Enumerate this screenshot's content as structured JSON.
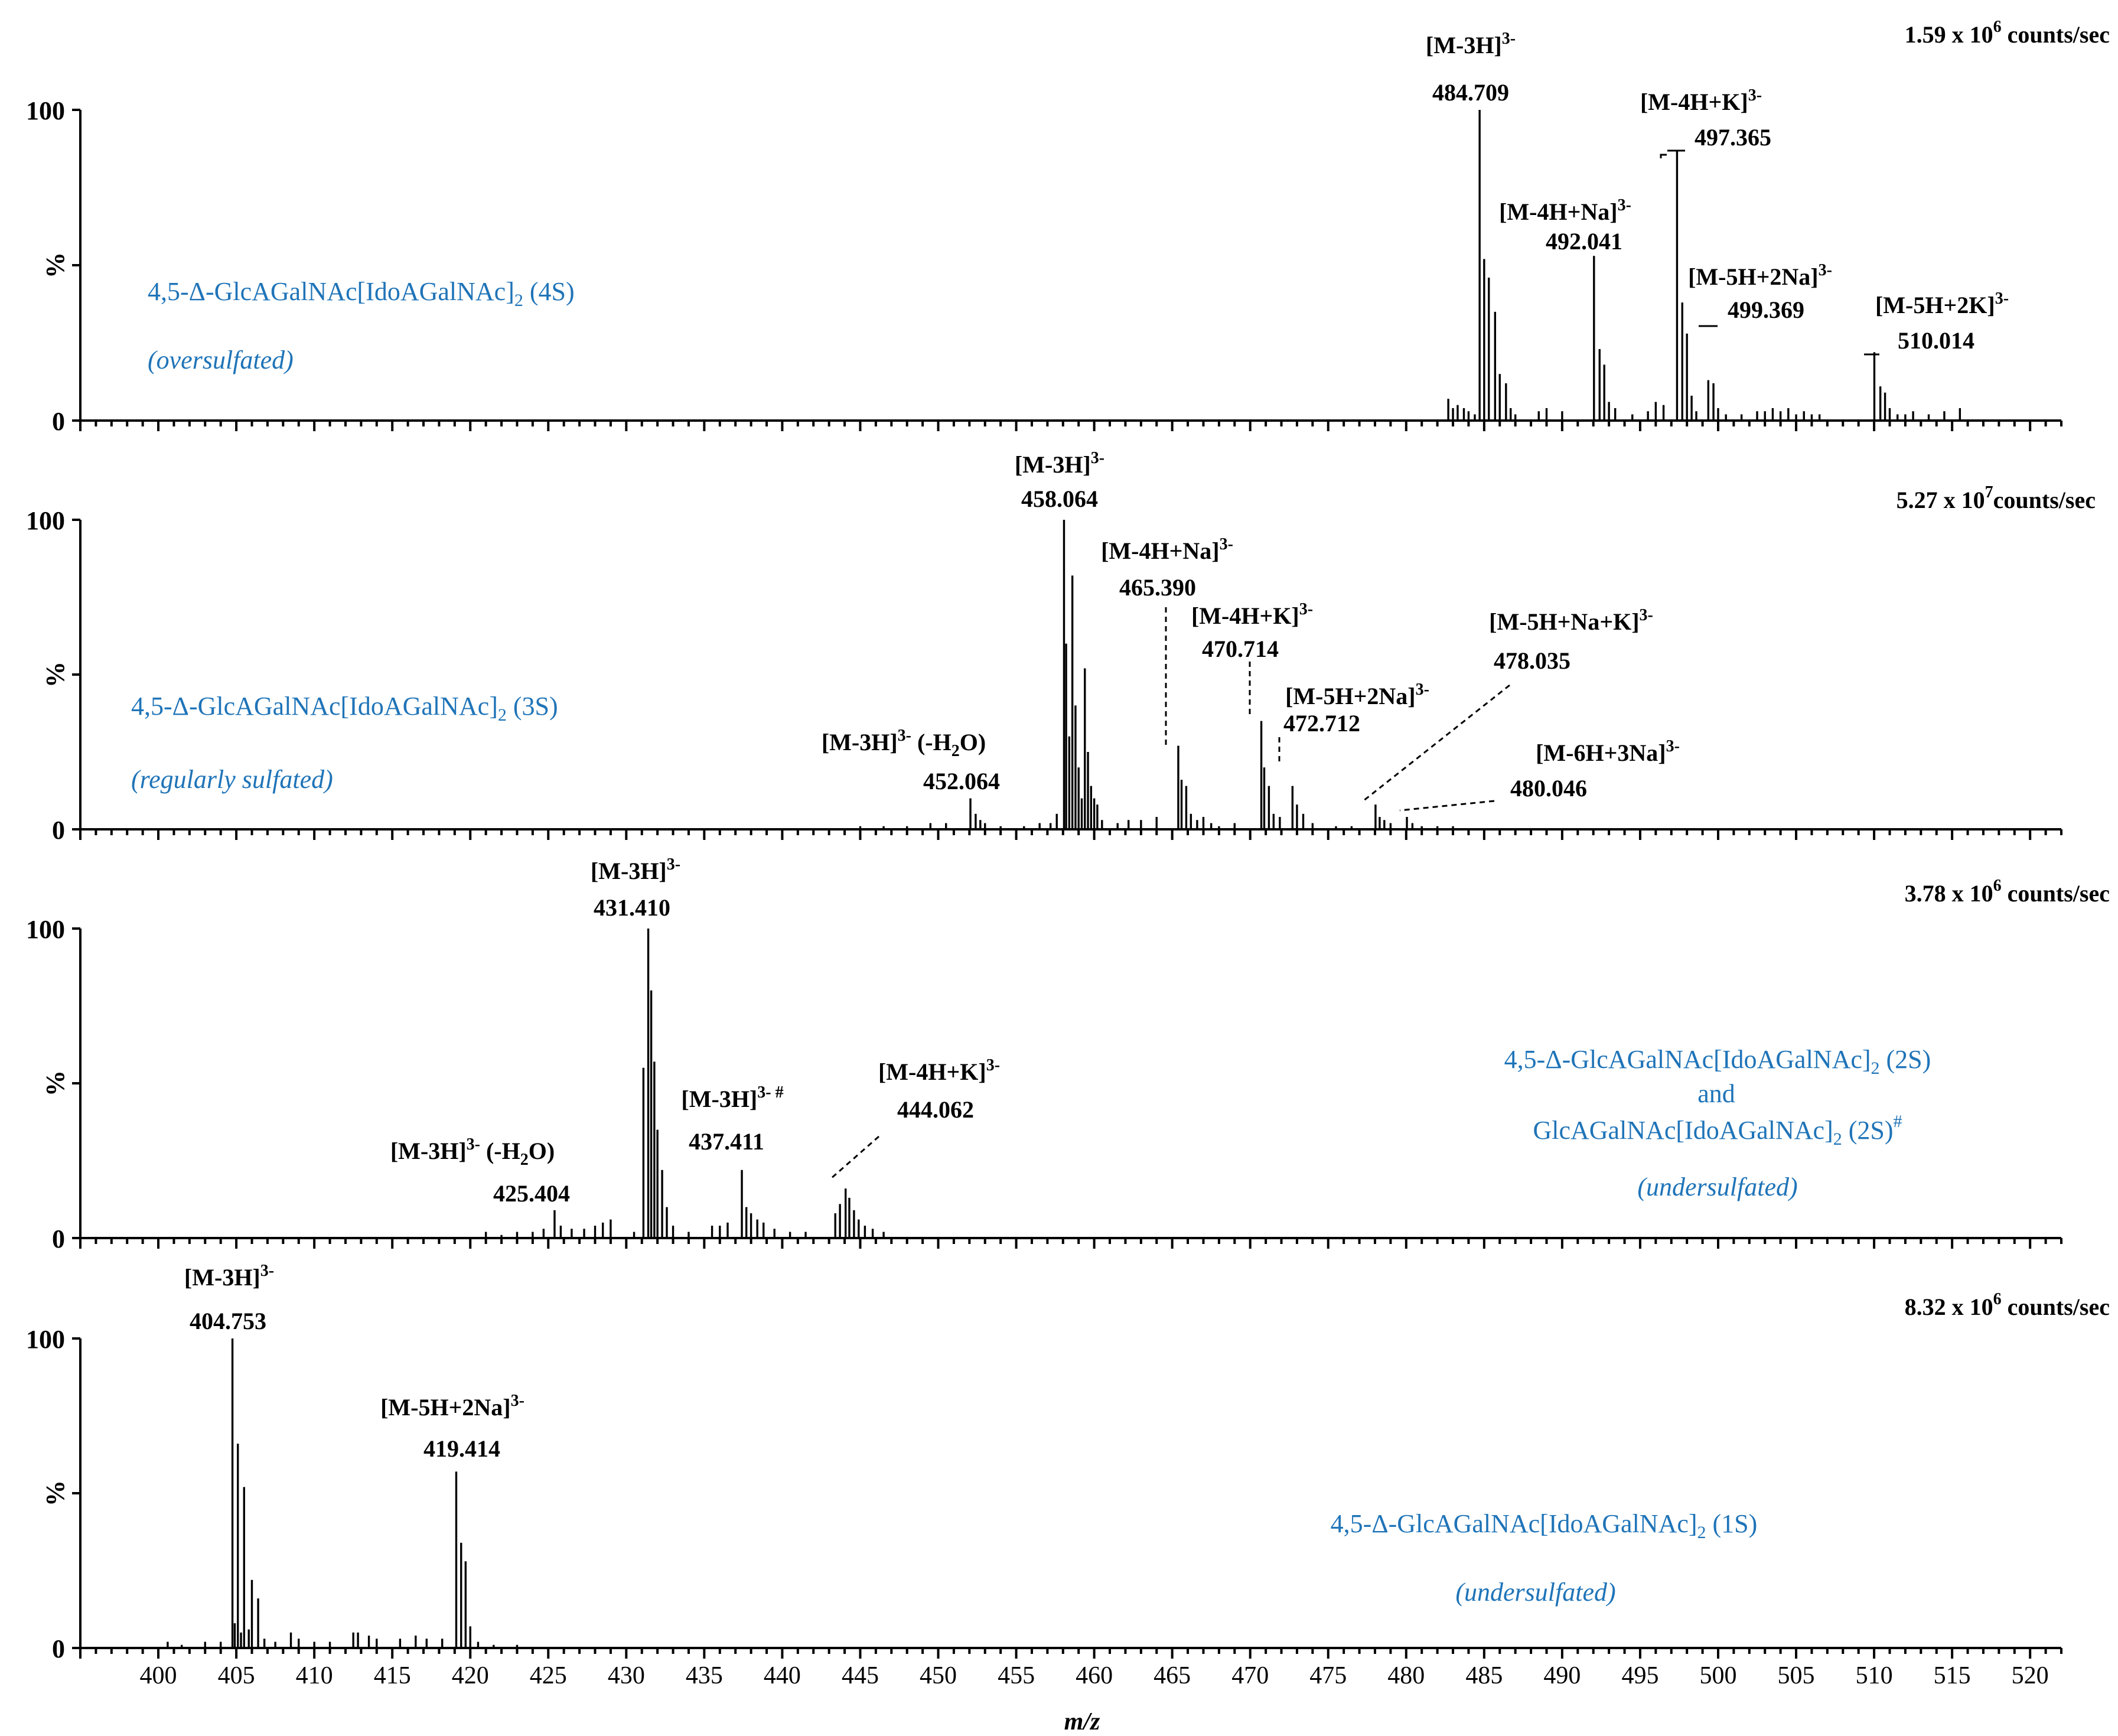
{
  "chart_data": {
    "type": "line",
    "xlabel": "m/z",
    "ylabel": "%",
    "xlim": [
      395,
      522
    ],
    "ylim": [
      0,
      100
    ],
    "x_ticks": [
      "400",
      "405",
      "410",
      "415",
      "420",
      "425",
      "430",
      "435",
      "440",
      "445",
      "450",
      "455",
      "460",
      "465",
      "470",
      "475",
      "480",
      "485",
      "490",
      "495",
      "500",
      "505",
      "510",
      "515",
      "520"
    ],
    "y_ticks": [
      "100",
      "%",
      "0"
    ],
    "panels": [
      {
        "scale_prefix": "1.59 x 10",
        "scale_exp": "6",
        "scale_suffix": "counts/sec",
        "compound": [
          "4,5-Δ-GlcAGalNAc[IdoAGalNAc]",
          "2",
          "(4S)"
        ],
        "descriptor": "(oversulfated)",
        "peaks": [
          [
            482.7,
            7
          ],
          [
            483.0,
            4
          ],
          [
            483.3,
            5
          ],
          [
            483.7,
            4
          ],
          [
            484.0,
            3
          ],
          [
            484.4,
            2
          ],
          [
            484.709,
            100
          ],
          [
            485.0,
            52
          ],
          [
            485.3,
            46
          ],
          [
            485.7,
            35
          ],
          [
            486.0,
            15
          ],
          [
            486.4,
            12
          ],
          [
            486.7,
            4
          ],
          [
            487.0,
            2
          ],
          [
            488.5,
            3
          ],
          [
            489.0,
            4
          ],
          [
            490.0,
            3
          ],
          [
            492.041,
            53
          ],
          [
            492.4,
            23
          ],
          [
            492.7,
            18
          ],
          [
            493.0,
            6
          ],
          [
            493.4,
            4
          ],
          [
            494.5,
            2
          ],
          [
            495.5,
            3
          ],
          [
            496.0,
            6
          ],
          [
            496.5,
            5
          ],
          [
            497.365,
            87
          ],
          [
            497.7,
            38
          ],
          [
            498.0,
            28
          ],
          [
            498.3,
            8
          ],
          [
            498.6,
            3
          ],
          [
            499.369,
            13
          ],
          [
            499.7,
            12
          ],
          [
            500.0,
            4
          ],
          [
            500.5,
            2
          ],
          [
            501.5,
            2
          ],
          [
            502.5,
            3
          ],
          [
            503.0,
            3
          ],
          [
            503.5,
            4
          ],
          [
            504.0,
            3
          ],
          [
            504.5,
            4
          ],
          [
            505.0,
            2
          ],
          [
            505.5,
            3
          ],
          [
            506.0,
            2
          ],
          [
            506.5,
            2
          ],
          [
            510.014,
            22
          ],
          [
            510.4,
            11
          ],
          [
            510.7,
            9
          ],
          [
            511.0,
            4
          ],
          [
            511.5,
            2
          ],
          [
            512.0,
            2
          ],
          [
            512.5,
            3
          ],
          [
            513.5,
            2
          ],
          [
            514.5,
            3
          ],
          [
            515.5,
            4
          ]
        ],
        "labels": [
          {
            "ion": "[M-3H]",
            "charge": "3-",
            "mz": "484.709"
          },
          {
            "ion": "[M-4H+Na]",
            "charge": "3-",
            "mz": "492.041"
          },
          {
            "ion": "[M-4H+K]",
            "charge": "3-",
            "mz": "497.365"
          },
          {
            "ion": "[M-5H+2Na]",
            "charge": "3-",
            "mz": "499.369"
          },
          {
            "ion": "[M-5H+2K]",
            "charge": "3-",
            "mz": "510.014"
          }
        ]
      },
      {
        "scale_prefix": "5.27 x 10",
        "scale_exp": "7",
        "scale_suffix": "counts/sec",
        "compound": [
          "4,5-Δ-GlcAGalNAc[IdoAGalNAc]",
          "2",
          "(3S)"
        ],
        "descriptor": "(regularly sulfated)",
        "peaks": [
          [
            445.0,
            1
          ],
          [
            446.5,
            1
          ],
          [
            448.0,
            1
          ],
          [
            449.5,
            2
          ],
          [
            450.5,
            2
          ],
          [
            452.064,
            10
          ],
          [
            452.4,
            5
          ],
          [
            452.7,
            3
          ],
          [
            453.0,
            2
          ],
          [
            454.0,
            1
          ],
          [
            455.5,
            1
          ],
          [
            456.5,
            2
          ],
          [
            457.2,
            2
          ],
          [
            457.6,
            5
          ],
          [
            458.064,
            100
          ],
          [
            458.2,
            60
          ],
          [
            458.4,
            30
          ],
          [
            458.6,
            82
          ],
          [
            458.8,
            40
          ],
          [
            459.0,
            20
          ],
          [
            459.2,
            10
          ],
          [
            459.4,
            52
          ],
          [
            459.6,
            25
          ],
          [
            459.8,
            14
          ],
          [
            460.0,
            10
          ],
          [
            460.2,
            8
          ],
          [
            460.5,
            3
          ],
          [
            461.5,
            2
          ],
          [
            462.2,
            3
          ],
          [
            463.0,
            3
          ],
          [
            464.0,
            4
          ],
          [
            465.39,
            27
          ],
          [
            465.6,
            16
          ],
          [
            465.9,
            14
          ],
          [
            466.2,
            5
          ],
          [
            466.6,
            3
          ],
          [
            467.0,
            4
          ],
          [
            467.5,
            2
          ],
          [
            468.0,
            1
          ],
          [
            469.0,
            2
          ],
          [
            470.714,
            35
          ],
          [
            470.9,
            20
          ],
          [
            471.2,
            14
          ],
          [
            471.5,
            5
          ],
          [
            471.9,
            4
          ],
          [
            472.712,
            14
          ],
          [
            473.0,
            8
          ],
          [
            473.4,
            5
          ],
          [
            474.0,
            2
          ],
          [
            475.5,
            1
          ],
          [
            476.5,
            1
          ],
          [
            478.035,
            8
          ],
          [
            478.3,
            4
          ],
          [
            478.6,
            3
          ],
          [
            479.0,
            2
          ],
          [
            480.046,
            4
          ],
          [
            480.4,
            2
          ],
          [
            481.0,
            1
          ],
          [
            482.0,
            1
          ],
          [
            483.0,
            1
          ]
        ],
        "labels": [
          {
            "ion": "[M-3H]",
            "charge": "3-",
            "mz": "458.064"
          },
          {
            "ion": "[M-4H+Na]",
            "charge": "3-",
            "mz": "465.390"
          },
          {
            "ion": "[M-4H+K]",
            "charge": "3-",
            "mz": "470.714"
          },
          {
            "ion": "[M-5H+2Na]",
            "charge": "3-",
            "mz": "472.712"
          },
          {
            "ion": "[M-5H+Na+K]",
            "charge": "3-",
            "mz": "478.035"
          },
          {
            "ion": "[M-6H+3Na]",
            "charge": "3-",
            "mz": "480.046"
          },
          {
            "ion": "[M-3H]",
            "charge": "3-",
            "suffix": "(-H",
            "sub": "2",
            "suffix2": "O)",
            "mz": "452.064"
          }
        ]
      },
      {
        "scale_prefix": "3.78 x 10",
        "scale_exp": "6",
        "scale_suffix": "counts/sec",
        "compound": [
          "4,5-Δ-GlcAGalNAc[IdoAGalNAc]",
          "2",
          "(2S)"
        ],
        "compound_join": "and",
        "compound2": [
          "GlcAGalNAc[IdoAGalNAc]",
          "2",
          "(2S)",
          "#"
        ],
        "descriptor": "(undersulfated)",
        "peaks": [
          [
            421.0,
            2
          ],
          [
            422.0,
            1
          ],
          [
            423.0,
            2
          ],
          [
            424.0,
            2
          ],
          [
            424.7,
            3
          ],
          [
            425.404,
            9
          ],
          [
            425.8,
            4
          ],
          [
            426.5,
            3
          ],
          [
            427.3,
            3
          ],
          [
            428.0,
            4
          ],
          [
            428.5,
            5
          ],
          [
            429.0,
            6
          ],
          [
            430.5,
            2
          ],
          [
            431.1,
            55
          ],
          [
            431.41,
            100
          ],
          [
            431.6,
            80
          ],
          [
            431.8,
            57
          ],
          [
            432.0,
            35
          ],
          [
            432.3,
            22
          ],
          [
            432.6,
            10
          ],
          [
            433.0,
            4
          ],
          [
            434.0,
            2
          ],
          [
            435.5,
            4
          ],
          [
            436.0,
            4
          ],
          [
            436.5,
            5
          ],
          [
            437.411,
            22
          ],
          [
            437.7,
            10
          ],
          [
            438.0,
            8
          ],
          [
            438.4,
            6
          ],
          [
            438.8,
            5
          ],
          [
            439.5,
            3
          ],
          [
            440.5,
            2
          ],
          [
            441.5,
            2
          ],
          [
            443.4,
            8
          ],
          [
            443.7,
            11
          ],
          [
            444.062,
            16
          ],
          [
            444.3,
            13
          ],
          [
            444.6,
            9
          ],
          [
            444.9,
            6
          ],
          [
            445.3,
            4
          ],
          [
            445.8,
            3
          ],
          [
            446.5,
            2
          ]
        ],
        "labels": [
          {
            "ion": "[M-3H]",
            "charge": "3-",
            "mz": "431.410"
          },
          {
            "ion": "[M-3H]",
            "charge": "3- #",
            "mz": "437.411"
          },
          {
            "ion": "[M-4H+K]",
            "charge": "3-",
            "mz": "444.062"
          },
          {
            "ion": "[M-3H]",
            "charge": "3-",
            "suffix": "(-H",
            "sub": "2",
            "suffix2": "O)",
            "mz": "425.404"
          }
        ]
      },
      {
        "scale_prefix": "8.32 x 10",
        "scale_exp": "6",
        "scale_suffix": "counts/sec",
        "compound": [
          "4,5-Δ-GlcAGalNAc[IdoAGalNAc]",
          "2",
          "(1S)"
        ],
        "descriptor": "(undersulfated)",
        "peaks": [
          [
            400.6,
            2
          ],
          [
            401.5,
            1
          ],
          [
            403.0,
            2
          ],
          [
            404.0,
            2
          ],
          [
            404.753,
            100
          ],
          [
            404.9,
            8
          ],
          [
            405.1,
            66
          ],
          [
            405.3,
            5
          ],
          [
            405.5,
            52
          ],
          [
            405.8,
            6
          ],
          [
            406.0,
            22
          ],
          [
            406.4,
            16
          ],
          [
            406.8,
            3
          ],
          [
            407.5,
            2
          ],
          [
            408.5,
            5
          ],
          [
            409.0,
            3
          ],
          [
            410.0,
            2
          ],
          [
            411.0,
            2
          ],
          [
            412.5,
            5
          ],
          [
            412.8,
            5
          ],
          [
            413.5,
            4
          ],
          [
            414.0,
            3
          ],
          [
            415.5,
            3
          ],
          [
            416.5,
            4
          ],
          [
            417.2,
            3
          ],
          [
            418.2,
            3
          ],
          [
            419.1,
            57
          ],
          [
            419.414,
            34
          ],
          [
            419.7,
            28
          ],
          [
            420.0,
            7
          ],
          [
            420.5,
            2
          ],
          [
            421.5,
            1
          ],
          [
            423.0,
            1
          ]
        ],
        "labels": [
          {
            "ion": "[M-3H]",
            "charge": "3-",
            "mz": "404.753"
          },
          {
            "ion": "[M-5H+2Na]",
            "charge": "3-",
            "mz": "419.414"
          }
        ]
      }
    ]
  }
}
